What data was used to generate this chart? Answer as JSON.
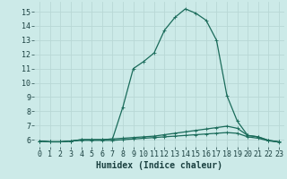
{
  "xlabel": "Humidex (Indice chaleur)",
  "bg_color": "#cceae8",
  "grid_color": "#b8d8d5",
  "line_color": "#1a6b5a",
  "xlim": [
    -0.5,
    23.5
  ],
  "ylim": [
    5.5,
    15.7
  ],
  "yticks": [
    6,
    7,
    8,
    9,
    10,
    11,
    12,
    13,
    14,
    15
  ],
  "xticks": [
    0,
    1,
    2,
    3,
    4,
    5,
    6,
    7,
    8,
    9,
    10,
    11,
    12,
    13,
    14,
    15,
    16,
    17,
    18,
    19,
    20,
    21,
    22,
    23
  ],
  "line1_x": [
    0,
    1,
    2,
    3,
    4,
    5,
    6,
    7,
    8,
    9,
    10,
    11,
    12,
    13,
    14,
    15,
    16,
    17,
    18,
    19,
    20,
    21,
    22,
    23
  ],
  "line1_y": [
    5.9,
    5.85,
    5.85,
    5.9,
    6.0,
    6.0,
    6.0,
    6.05,
    6.1,
    6.15,
    6.2,
    6.25,
    6.35,
    6.45,
    6.55,
    6.65,
    6.75,
    6.85,
    6.95,
    6.8,
    6.3,
    6.2,
    5.95,
    5.85
  ],
  "line2_x": [
    0,
    1,
    2,
    3,
    4,
    5,
    6,
    7,
    8,
    9,
    10,
    11,
    12,
    13,
    14,
    15,
    16,
    17,
    18,
    19,
    20,
    21,
    22,
    23
  ],
  "line2_y": [
    5.9,
    5.85,
    5.85,
    5.9,
    6.0,
    6.0,
    6.0,
    6.05,
    8.3,
    11.0,
    11.5,
    12.1,
    13.7,
    14.6,
    15.2,
    14.9,
    14.4,
    13.0,
    9.1,
    7.3,
    6.3,
    6.2,
    5.95,
    5.85
  ],
  "line3_x": [
    0,
    1,
    2,
    3,
    4,
    5,
    6,
    7,
    8,
    9,
    10,
    11,
    12,
    13,
    14,
    15,
    16,
    17,
    18,
    19,
    20,
    21,
    22,
    23
  ],
  "line3_y": [
    5.9,
    5.85,
    5.85,
    5.9,
    5.95,
    5.95,
    5.95,
    5.95,
    6.0,
    6.05,
    6.1,
    6.15,
    6.2,
    6.25,
    6.3,
    6.35,
    6.4,
    6.45,
    6.5,
    6.45,
    6.2,
    6.1,
    5.92,
    5.83
  ],
  "marker_size": 2.5,
  "line_width": 0.9,
  "xlabel_fontsize": 7,
  "tick_fontsize": 6
}
